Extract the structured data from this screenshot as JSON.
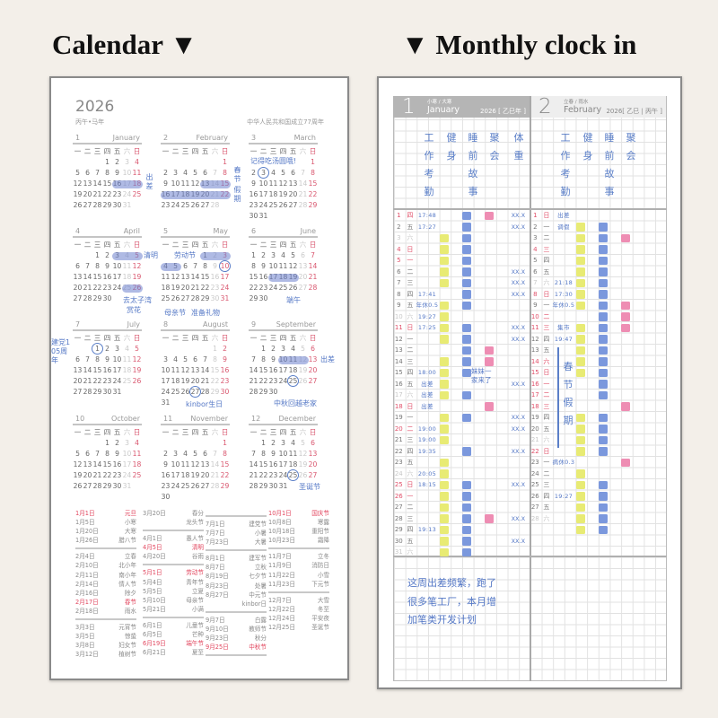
{
  "headings": {
    "calendar": "Calendar ▼",
    "clock_in": "▼ Monthly clock in"
  },
  "calendar": {
    "year": "2026",
    "ganzhi": "丙午•马年",
    "anniversary": "中华人民共和国成立77周年",
    "weekdays": [
      "一",
      "二",
      "三",
      "四",
      "五",
      "六",
      "日"
    ],
    "months": [
      {
        "n": "1",
        "name": "January"
      },
      {
        "n": "2",
        "name": "February"
      },
      {
        "n": "3",
        "name": "March"
      },
      {
        "n": "4",
        "name": "April"
      },
      {
        "n": "5",
        "name": "May"
      },
      {
        "n": "6",
        "name": "June"
      },
      {
        "n": "7",
        "name": "July"
      },
      {
        "n": "8",
        "name": "August"
      },
      {
        "n": "9",
        "name": "September"
      },
      {
        "n": "10",
        "name": "October"
      },
      {
        "n": "11",
        "name": "November"
      },
      {
        "n": "12",
        "name": "December"
      }
    ],
    "highlights": [
      {
        "month": 1,
        "from": 16,
        "to": 18
      },
      {
        "month": 2,
        "from": 13,
        "to": 15
      },
      {
        "month": 2,
        "from": 16,
        "to": 22
      },
      {
        "month": 4,
        "from": 3,
        "to": 5
      },
      {
        "month": 4,
        "from": 25,
        "to": 26
      },
      {
        "month": 5,
        "from": 1,
        "to": 5
      },
      {
        "month": 6,
        "from": 17,
        "to": 19
      },
      {
        "month": 9,
        "from": 10,
        "to": 12
      }
    ],
    "circles": [
      {
        "month": 3,
        "day": 3
      },
      {
        "month": 5,
        "day": 10
      },
      {
        "month": 7,
        "day": 1
      },
      {
        "month": 8,
        "day": 27
      },
      {
        "month": 9,
        "day": 25
      },
      {
        "month": 12,
        "day": 25
      }
    ],
    "notes": [
      "出差",
      "春节",
      "假期",
      "记得吃汤圆哦!",
      "清明",
      "去太子湾",
      "赏花",
      "劳动节",
      "母亲节",
      "准备礼物",
      "端午",
      "建党105周年",
      "kinbor生日",
      "出差",
      "中秋回越老家",
      "圣诞节"
    ],
    "holidays": [
      [
        [
          [
            "1月1日",
            "元旦",
            true
          ],
          [
            "1月5日",
            "小寒",
            false
          ],
          [
            "1月20日",
            "大寒",
            false
          ],
          [
            "1月26日",
            "腊八节",
            false
          ]
        ],
        [
          [
            "2月4日",
            "立春",
            false
          ],
          [
            "2月10日",
            "北小年",
            false
          ],
          [
            "2月11日",
            "南小年",
            false
          ],
          [
            "2月14日",
            "情人节",
            false
          ],
          [
            "2月16日",
            "除夕",
            false
          ],
          [
            "2月17日",
            "春节",
            true
          ],
          [
            "2月18日",
            "雨水",
            false
          ]
        ],
        [
          [
            "3月3日",
            "元宵节",
            false
          ],
          [
            "3月5日",
            "惊蛰",
            false
          ],
          [
            "3月8日",
            "妇女节",
            false
          ],
          [
            "3月12日",
            "植树节",
            false
          ]
        ]
      ],
      [
        [
          [
            "3月20日",
            "春分",
            false
          ],
          [
            "",
            "龙头节",
            false
          ]
        ],
        [
          [
            "4月1日",
            "愚人节",
            false
          ],
          [
            "4月5日",
            "清明",
            true
          ],
          [
            "4月20日",
            "谷雨",
            false
          ]
        ],
        [
          [
            "5月1日",
            "劳动节",
            true
          ],
          [
            "5月4日",
            "青年节",
            false
          ],
          [
            "5月5日",
            "立夏",
            false
          ],
          [
            "5月10日",
            "母亲节",
            false
          ],
          [
            "5月21日",
            "小满",
            false
          ]
        ],
        [
          [
            "6月1日",
            "儿童节",
            false
          ],
          [
            "6月5日",
            "芒种",
            false
          ],
          [
            "6月19日",
            "端午节",
            true
          ],
          [
            "6月21日",
            "夏至",
            false
          ]
        ]
      ],
      [
        [
          [
            "7月1日",
            "建党节",
            false
          ],
          [
            "7月7日",
            "小暑",
            false
          ],
          [
            "7月23日",
            "大暑",
            false
          ]
        ],
        [
          [
            "8月1日",
            "建军节",
            false
          ],
          [
            "8月7日",
            "立秋",
            false
          ],
          [
            "8月19日",
            "七夕节",
            false
          ],
          [
            "8月23日",
            "处暑",
            false
          ],
          [
            "8月27日",
            "中元节",
            false
          ],
          [
            "",
            "kinbor日",
            false
          ]
        ],
        [
          [
            "9月7日",
            "白露",
            false
          ],
          [
            "9月10日",
            "教师节",
            false
          ],
          [
            "9月23日",
            "秋分",
            false
          ],
          [
            "9月25日",
            "中秋节",
            true
          ]
        ]
      ],
      [
        [
          [
            "10月1日",
            "国庆节",
            true
          ],
          [
            "10月8日",
            "寒露",
            false
          ],
          [
            "10月18日",
            "重阳节",
            false
          ],
          [
            "10月23日",
            "霜降",
            false
          ]
        ],
        [
          [
            "11月7日",
            "立冬",
            false
          ],
          [
            "11月9日",
            "消防日",
            false
          ],
          [
            "11月22日",
            "小雪",
            false
          ],
          [
            "11月23日",
            "下元节",
            false
          ]
        ],
        [
          [
            "12月7日",
            "大雪",
            false
          ],
          [
            "12月22日",
            "冬至",
            false
          ],
          [
            "12月24日",
            "平安夜",
            false
          ],
          [
            "12月25日",
            "圣诞节",
            false
          ]
        ]
      ]
    ]
  },
  "clock": {
    "colors": {
      "gym": "#e8eb74",
      "story": "#7b98dd",
      "party": "#ee8db3",
      "ink": "#5578c6"
    },
    "jan": {
      "num": "1",
      "terms": "小寒 / 大寒",
      "name": "January",
      "year": "2026 [ 乙巳年 ]",
      "labels": [
        "工作考勤",
        "健身",
        "睡前故事",
        "聚会",
        "体重"
      ],
      "rows": [
        [
          "1",
          "四",
          "17:48",
          0,
          1,
          1,
          "XX.X",
          "r"
        ],
        [
          "2",
          "五",
          "17:27",
          0,
          1,
          0,
          "XX.X",
          ""
        ],
        [
          "3",
          "六",
          "",
          1,
          1,
          0,
          "",
          "g"
        ],
        [
          "4",
          "日",
          "",
          1,
          1,
          0,
          "",
          "r"
        ],
        [
          "5",
          "一",
          "",
          1,
          1,
          0,
          "",
          "r"
        ],
        [
          "6",
          "二",
          "",
          1,
          1,
          0,
          "XX.X",
          ""
        ],
        [
          "7",
          "三",
          "",
          1,
          1,
          0,
          "XX.X",
          ""
        ],
        [
          "8",
          "四",
          "17:41",
          0,
          1,
          0,
          "XX.X",
          ""
        ],
        [
          "9",
          "五",
          "年休0.5",
          1,
          1,
          0,
          "",
          ""
        ],
        [
          "10",
          "六",
          "19:27",
          1,
          0,
          0,
          "",
          "g"
        ],
        [
          "11",
          "日",
          "17:25",
          1,
          1,
          0,
          "XX.X",
          "r"
        ],
        [
          "12",
          "一",
          "",
          1,
          1,
          0,
          "XX.X",
          ""
        ],
        [
          "13",
          "二",
          "",
          0,
          1,
          1,
          "",
          ""
        ],
        [
          "14",
          "三",
          "",
          1,
          1,
          1,
          "",
          ""
        ],
        [
          "15",
          "四",
          "18:00",
          1,
          1,
          0,
          "",
          ""
        ],
        [
          "16",
          "五",
          "出差",
          1,
          0,
          0,
          "XX.X",
          ""
        ],
        [
          "17",
          "六",
          "出差",
          1,
          1,
          0,
          "",
          "g"
        ],
        [
          "18",
          "日",
          "出差",
          0,
          0,
          1,
          "",
          "r"
        ],
        [
          "19",
          "一",
          "",
          1,
          1,
          0,
          "XX.X",
          ""
        ],
        [
          "20",
          "二",
          "19:00",
          1,
          0,
          0,
          "XX.X",
          "r"
        ],
        [
          "21",
          "三",
          "19:00",
          1,
          0,
          0,
          "",
          ""
        ],
        [
          "22",
          "四",
          "19:35",
          0,
          1,
          0,
          "XX.X",
          ""
        ],
        [
          "23",
          "五",
          "",
          1,
          0,
          0,
          "",
          ""
        ],
        [
          "24",
          "六",
          "20:05",
          1,
          0,
          0,
          "",
          "g"
        ],
        [
          "25",
          "日",
          "18:15",
          1,
          1,
          0,
          "XX.X",
          "r"
        ],
        [
          "26",
          "一",
          "",
          1,
          1,
          0,
          "",
          "r"
        ],
        [
          "27",
          "二",
          "",
          1,
          1,
          0,
          "",
          ""
        ],
        [
          "28",
          "三",
          "",
          1,
          1,
          1,
          "XX.X",
          ""
        ],
        [
          "29",
          "四",
          "19:13",
          1,
          1,
          0,
          "",
          ""
        ],
        [
          "30",
          "五",
          "",
          1,
          1,
          0,
          "XX.X",
          ""
        ],
        [
          "31",
          "六",
          "",
          1,
          1,
          0,
          "",
          "g"
        ]
      ],
      "event": [
        "妹妹一",
        "家来了"
      ]
    },
    "feb": {
      "num": "2",
      "terms": "立春 / 雨水",
      "name": "February",
      "year": "2026[ 乙巳 | 丙午 ]",
      "labels": [
        "工作考勤",
        "健身",
        "睡前故事",
        "聚会"
      ],
      "rows": [
        [
          "1",
          "日",
          "出差",
          0,
          0,
          0,
          "",
          "r"
        ],
        [
          "2",
          "一",
          "调假",
          1,
          1,
          0,
          "",
          ""
        ],
        [
          "3",
          "二",
          "",
          1,
          1,
          1,
          "",
          ""
        ],
        [
          "4",
          "三",
          "",
          1,
          1,
          0,
          "",
          "r"
        ],
        [
          "5",
          "四",
          "",
          1,
          1,
          0,
          "",
          ""
        ],
        [
          "6",
          "五",
          "",
          1,
          1,
          0,
          "",
          ""
        ],
        [
          "7",
          "六",
          "21:18",
          1,
          1,
          0,
          "",
          "g"
        ],
        [
          "8",
          "日",
          "17:30",
          1,
          1,
          0,
          "",
          "r"
        ],
        [
          "9",
          "一",
          "年休0.5",
          1,
          1,
          1,
          "",
          ""
        ],
        [
          "10",
          "二",
          "",
          0,
          1,
          1,
          "",
          "r"
        ],
        [
          "11",
          "三",
          "集市",
          1,
          1,
          1,
          "",
          "r"
        ],
        [
          "12",
          "四",
          "19:47",
          1,
          1,
          0,
          "",
          ""
        ],
        [
          "13",
          "五",
          "",
          1,
          1,
          0,
          "",
          ""
        ],
        [
          "14",
          "六",
          "",
          1,
          1,
          0,
          "",
          "r"
        ],
        [
          "15",
          "日",
          "",
          1,
          1,
          0,
          "",
          "r"
        ],
        [
          "16",
          "一",
          "",
          0,
          1,
          0,
          "",
          "r"
        ],
        [
          "17",
          "二",
          "",
          0,
          1,
          0,
          "",
          "r"
        ],
        [
          "18",
          "三",
          "",
          0,
          0,
          1,
          "",
          "r"
        ],
        [
          "19",
          "四",
          "",
          1,
          1,
          0,
          "",
          ""
        ],
        [
          "20",
          "五",
          "",
          1,
          1,
          0,
          "",
          ""
        ],
        [
          "21",
          "六",
          "",
          1,
          1,
          0,
          "",
          "g"
        ],
        [
          "22",
          "日",
          "",
          1,
          1,
          0,
          "",
          "r"
        ],
        [
          "23",
          "一",
          "病休0.3",
          0,
          0,
          1,
          "",
          ""
        ],
        [
          "24",
          "二",
          "",
          1,
          0,
          0,
          "",
          ""
        ],
        [
          "25",
          "三",
          "",
          1,
          1,
          0,
          "",
          ""
        ],
        [
          "26",
          "四",
          "19:27",
          1,
          1,
          0,
          "",
          ""
        ],
        [
          "27",
          "五",
          "",
          1,
          1,
          0,
          "",
          ""
        ],
        [
          "28",
          "六",
          "",
          1,
          1,
          0,
          "",
          "g"
        ],
        [
          "",
          "",
          "",
          1,
          1,
          0,
          "",
          ""
        ]
      ],
      "event": "春节假期"
    },
    "note": [
      "这周出差频繁，跑了",
      "很多笔工厂，本月增",
      "加笔类开发计划"
    ]
  }
}
